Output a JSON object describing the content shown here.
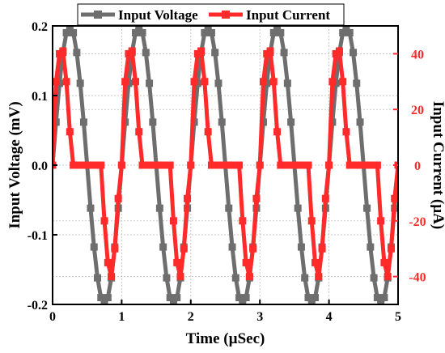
{
  "chart_data": {
    "type": "line",
    "xlabel": "Time (µSec)",
    "xlim": [
      0,
      5
    ],
    "x_ticks": [
      "0",
      "1",
      "2",
      "3",
      "4",
      "5"
    ],
    "y_left": {
      "label": "Input Voltage (mV)",
      "lim": [
        -0.2,
        0.2
      ],
      "ticks": [
        "-0.2",
        "-0.1",
        "0.0",
        "0.1",
        "0.2"
      ]
    },
    "y_right": {
      "label": "Input Current (µA)",
      "lim": [
        -50,
        50
      ],
      "ticks": [
        "-40",
        "-20",
        "0",
        "20",
        "40"
      ]
    },
    "grid": true,
    "legend": "top",
    "series": [
      {
        "name": "Input Voltage",
        "axis": "left",
        "color": "#6e6e6e",
        "marker": "square",
        "function": "0.2 * sin(2*pi*t)",
        "t_start": 0,
        "t_end": 5,
        "points": 101
      },
      {
        "name": "Input Current",
        "axis": "right",
        "color": "#ff2a2a",
        "marker": "square",
        "x": [
          0,
          0.05,
          0.1,
          0.15,
          0.2,
          0.25,
          0.3,
          0.4,
          0.5,
          0.6,
          0.7,
          0.75,
          0.8,
          0.85,
          0.9,
          0.95,
          1.0
        ],
        "y": [
          0,
          30,
          40,
          41,
          30,
          12,
          0,
          0,
          0,
          0,
          0,
          -20,
          -35,
          -40,
          -30,
          -12,
          0
        ],
        "period": 1,
        "cycles": 5
      }
    ]
  }
}
